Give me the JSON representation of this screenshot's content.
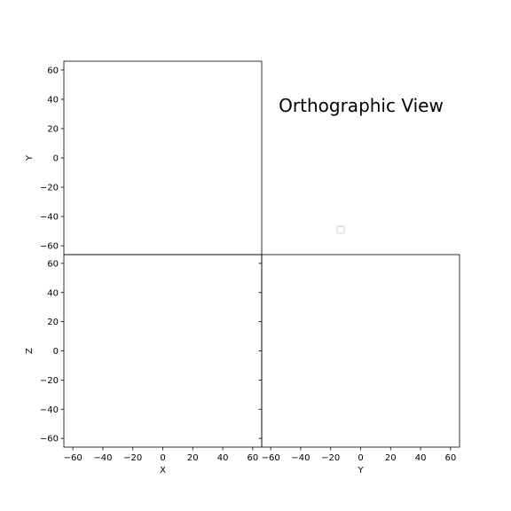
{
  "figure": {
    "title": "Orthographic View",
    "background": "#ffffff",
    "axis_color": "#000000"
  },
  "chart_data": [
    {
      "type": "scatter",
      "panel": "top-left",
      "xlim": [
        -66,
        66
      ],
      "ylim": [
        -66,
        66
      ],
      "xlabel": "",
      "ylabel": "Y",
      "x_ticks": [],
      "y_ticks": [
        -60,
        -40,
        -20,
        0,
        20,
        40,
        60
      ],
      "y_tick_labels": [
        "−60",
        "−40",
        "−20",
        "0",
        "20",
        "40",
        "60"
      ],
      "points": []
    },
    {
      "type": "scatter",
      "panel": "bottom-left",
      "xlim": [
        -66,
        66
      ],
      "ylim": [
        -66,
        66
      ],
      "xlabel": "X",
      "ylabel": "Z",
      "x_ticks": [
        -60,
        -40,
        -20,
        0,
        20,
        40,
        60
      ],
      "x_tick_labels": [
        "−60",
        "−40",
        "−20",
        "0",
        "20",
        "40",
        "60"
      ],
      "y_ticks": [
        -60,
        -40,
        -20,
        0,
        20,
        40,
        60
      ],
      "y_tick_labels": [
        "−60",
        "−40",
        "−20",
        "0",
        "20",
        "40",
        "60"
      ],
      "points": []
    },
    {
      "type": "scatter",
      "panel": "bottom-right",
      "xlim": [
        -66,
        66
      ],
      "ylim": [
        -66,
        66
      ],
      "xlabel": "Y",
      "ylabel": "",
      "x_ticks": [
        -60,
        -40,
        -20,
        0,
        20,
        40,
        60
      ],
      "x_tick_labels": [
        "−60",
        "−40",
        "−20",
        "0",
        "20",
        "40",
        "60"
      ],
      "y_ticks": [
        -60,
        -40,
        -20,
        0,
        20,
        40,
        60
      ],
      "y_tick_labels": [],
      "points": []
    }
  ],
  "legend": {
    "placement": "center",
    "entries": []
  }
}
